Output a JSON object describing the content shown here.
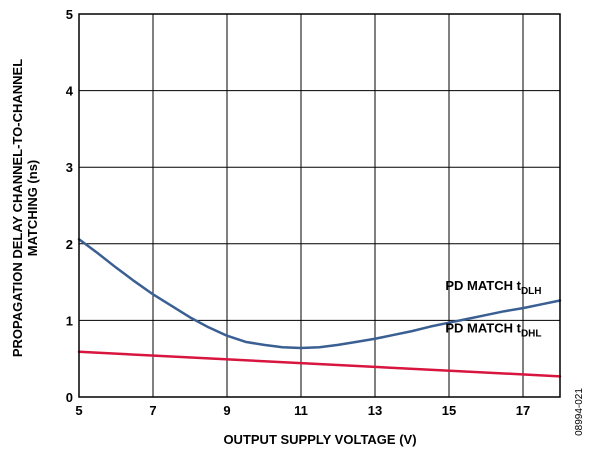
{
  "chart_data": {
    "type": "line",
    "xlabel": "OUTPUT SUPPLY VOLTAGE (V)",
    "ylabel_line1": "PROPAGATION DELAY CHANNEL-TO-CHANNEL",
    "ylabel_line2": "MATCHING (ns)",
    "xlim": [
      5,
      18
    ],
    "ylim": [
      0,
      5
    ],
    "x_ticks": [
      5,
      7,
      9,
      11,
      13,
      15,
      17
    ],
    "y_ticks": [
      0,
      1,
      2,
      3,
      4,
      5
    ],
    "x_grid": [
      5,
      7,
      9,
      11,
      13,
      15,
      17,
      18
    ],
    "grid": true,
    "series": [
      {
        "name_main": "PD MATCH t",
        "name_sub": "DLH",
        "color": "#3A5F93",
        "x": [
          5,
          5.5,
          6,
          6.5,
          7,
          7.5,
          8,
          8.5,
          9,
          9.5,
          10,
          10.5,
          11,
          11.5,
          12,
          12.5,
          13,
          13.5,
          14,
          14.5,
          15,
          15.5,
          16,
          16.5,
          17,
          17.5,
          18
        ],
        "values": [
          2.06,
          1.88,
          1.69,
          1.51,
          1.34,
          1.19,
          1.04,
          0.91,
          0.8,
          0.72,
          0.68,
          0.65,
          0.64,
          0.65,
          0.68,
          0.72,
          0.76,
          0.81,
          0.86,
          0.92,
          0.97,
          1.02,
          1.07,
          1.12,
          1.16,
          1.21,
          1.26
        ]
      },
      {
        "name_main": "PD MATCH t",
        "name_sub": "DHL",
        "color": "#D8153F",
        "x": [
          5,
          18
        ],
        "values": [
          0.59,
          0.27
        ]
      }
    ]
  },
  "figure_code": "08994-021"
}
